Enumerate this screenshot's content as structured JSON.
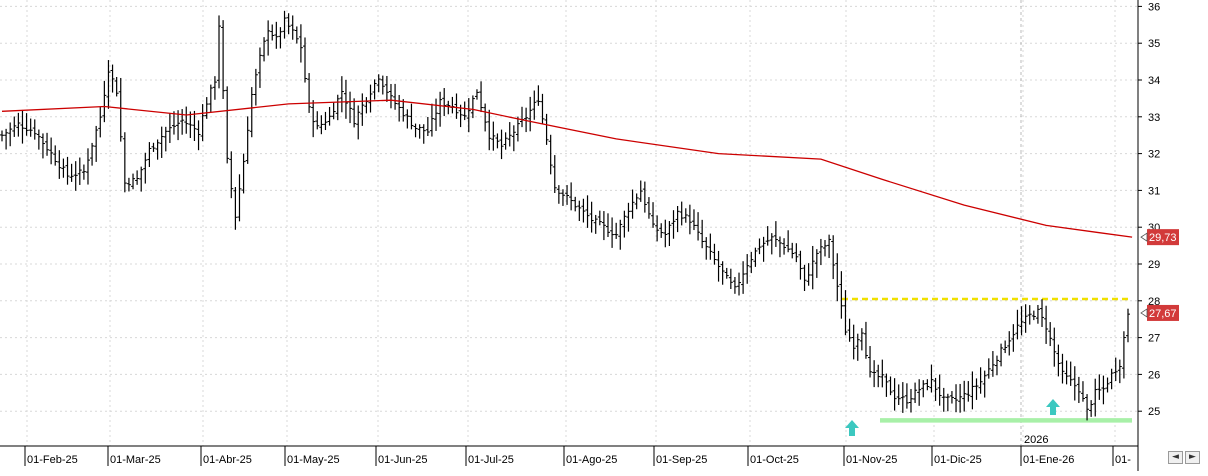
{
  "chart_data": {
    "type": "ohlc",
    "title": "",
    "y_axis": {
      "position": "right",
      "range": [
        24,
        36
      ],
      "ticks": [
        25,
        26,
        27,
        28,
        29,
        30,
        31,
        32,
        33,
        34,
        35,
        36
      ]
    },
    "x_axis": {
      "tick_labels": [
        "01-Feb-25",
        "01-Mar-25",
        "01-Abr-25",
        "01-May-25",
        "01-Jun-25",
        "01-Jul-25",
        "01-Ago-25",
        "01-Sep-25",
        "01-Oct-25",
        "01-Nov-25",
        "01-Dic-25",
        "01-Ene-26",
        "01-"
      ],
      "year_marker": "2026"
    },
    "grid": true,
    "price_series_anchors": [
      [
        0,
        32.5
      ],
      [
        4,
        32.8
      ],
      [
        8,
        32.6
      ],
      [
        12,
        32.0
      ],
      [
        16,
        31.4
      ],
      [
        20,
        31.5
      ],
      [
        24,
        33.0
      ],
      [
        26,
        34.3
      ],
      [
        28,
        33.7
      ],
      [
        30,
        31.2
      ],
      [
        33,
        31.3
      ],
      [
        36,
        32.1
      ],
      [
        40,
        32.6
      ],
      [
        44,
        32.9
      ],
      [
        48,
        32.6
      ],
      [
        50,
        33.4
      ],
      [
        52,
        34.0
      ],
      [
        53,
        35.5
      ],
      [
        55,
        31.8
      ],
      [
        57,
        30.3
      ],
      [
        59,
        31.8
      ],
      [
        61,
        33.6
      ],
      [
        63,
        34.6
      ],
      [
        65,
        35.4
      ],
      [
        67,
        35.1
      ],
      [
        69,
        35.6
      ],
      [
        71,
        35.3
      ],
      [
        73,
        34.9
      ],
      [
        75,
        33.2
      ],
      [
        77,
        32.7
      ],
      [
        80,
        33.0
      ],
      [
        83,
        33.7
      ],
      [
        86,
        32.9
      ],
      [
        89,
        33.5
      ],
      [
        92,
        34.1
      ],
      [
        95,
        33.5
      ],
      [
        98,
        33.1
      ],
      [
        101,
        32.7
      ],
      [
        104,
        32.6
      ],
      [
        107,
        33.4
      ],
      [
        110,
        33.3
      ],
      [
        113,
        33.0
      ],
      [
        116,
        33.7
      ],
      [
        119,
        32.5
      ],
      [
        122,
        32.2
      ],
      [
        125,
        32.6
      ],
      [
        128,
        33.0
      ],
      [
        131,
        33.5
      ],
      [
        133,
        32.4
      ],
      [
        135,
        31.1
      ],
      [
        138,
        30.8
      ],
      [
        141,
        30.5
      ],
      [
        144,
        30.2
      ],
      [
        147,
        30.0
      ],
      [
        150,
        29.8
      ],
      [
        153,
        30.5
      ],
      [
        156,
        31.0
      ],
      [
        159,
        30.0
      ],
      [
        162,
        29.8
      ],
      [
        165,
        30.4
      ],
      [
        168,
        30.2
      ],
      [
        171,
        29.6
      ],
      [
        174,
        29.1
      ],
      [
        177,
        28.6
      ],
      [
        179,
        28.3
      ],
      [
        182,
        29.0
      ],
      [
        185,
        29.5
      ],
      [
        188,
        29.7
      ],
      [
        191,
        29.5
      ],
      [
        194,
        29.2
      ],
      [
        196,
        28.5
      ],
      [
        199,
        29.3
      ],
      [
        202,
        29.6
      ],
      [
        204,
        28.4
      ],
      [
        206,
        27.2
      ],
      [
        208,
        26.8
      ],
      [
        210,
        27.2
      ],
      [
        212,
        26.0
      ],
      [
        215,
        25.9
      ],
      [
        218,
        25.4
      ],
      [
        221,
        25.3
      ],
      [
        224,
        25.6
      ],
      [
        227,
        25.8
      ],
      [
        230,
        25.3
      ],
      [
        233,
        25.3
      ],
      [
        236,
        25.5
      ],
      [
        239,
        25.8
      ],
      [
        242,
        26.3
      ],
      [
        245,
        26.8
      ],
      [
        248,
        27.3
      ],
      [
        251,
        27.6
      ],
      [
        253,
        27.7
      ],
      [
        255,
        27.3
      ],
      [
        257,
        26.6
      ],
      [
        259,
        26.0
      ],
      [
        261,
        25.8
      ],
      [
        263,
        25.6
      ],
      [
        265,
        25.0
      ],
      [
        267,
        25.5
      ],
      [
        269,
        25.6
      ],
      [
        271,
        26.0
      ],
      [
        273,
        26.3
      ],
      [
        275,
        27.67
      ]
    ],
    "moving_average": {
      "color": "#cc0000",
      "last_value": 29.73,
      "last_label": "29,73",
      "points": [
        [
          0,
          33.15
        ],
        [
          25,
          33.28
        ],
        [
          45,
          33.05
        ],
        [
          70,
          33.35
        ],
        [
          95,
          33.45
        ],
        [
          115,
          33.2
        ],
        [
          130,
          32.85
        ],
        [
          150,
          32.4
        ],
        [
          175,
          32.0
        ],
        [
          200,
          31.85
        ],
        [
          215,
          31.3
        ],
        [
          235,
          30.6
        ],
        [
          255,
          30.05
        ],
        [
          268,
          29.85
        ],
        [
          276,
          29.73
        ]
      ]
    },
    "last_price": {
      "value": 27.67,
      "label": "27,67",
      "color": "#d23a3a"
    },
    "annotations": [
      {
        "type": "resistance_line",
        "value": 28.05,
        "color": "#f0e000",
        "style": "dashed"
      },
      {
        "type": "support_line",
        "value": 24.75,
        "color": "#a8f0a8"
      },
      {
        "type": "up_arrow",
        "color": "#3cc8c0"
      },
      {
        "type": "up_arrow",
        "color": "#3cc8c0"
      }
    ]
  },
  "controls": {
    "scroll_left": "◄",
    "scroll_right": "►"
  }
}
